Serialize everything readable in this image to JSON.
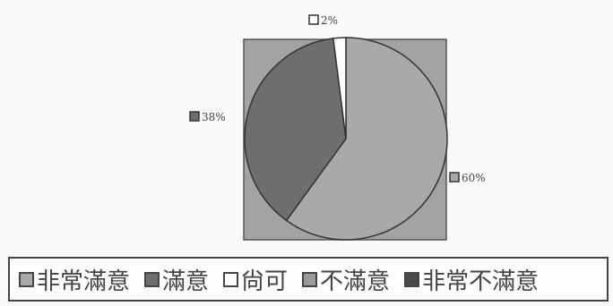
{
  "chart_data": {
    "type": "pie",
    "slices": [
      {
        "label": "60%",
        "value": 60,
        "color": "#a9a9a9"
      },
      {
        "label": "38%",
        "value": 38,
        "color": "#6e6e6e"
      },
      {
        "label": "2%",
        "value": 2,
        "color": "#ffffff"
      }
    ],
    "legend": [
      {
        "label": "非常滿意",
        "color": "#a9a9a9"
      },
      {
        "label": "滿意",
        "color": "#6e6e6e"
      },
      {
        "label": "尙可",
        "color": "#ffffff"
      },
      {
        "label": "不滿意",
        "color": "#9a9a9a"
      },
      {
        "label": "非常不滿意",
        "color": "#4a4a4a"
      }
    ],
    "plot_background": "#a3a3a3",
    "legend_position": "bottom"
  }
}
